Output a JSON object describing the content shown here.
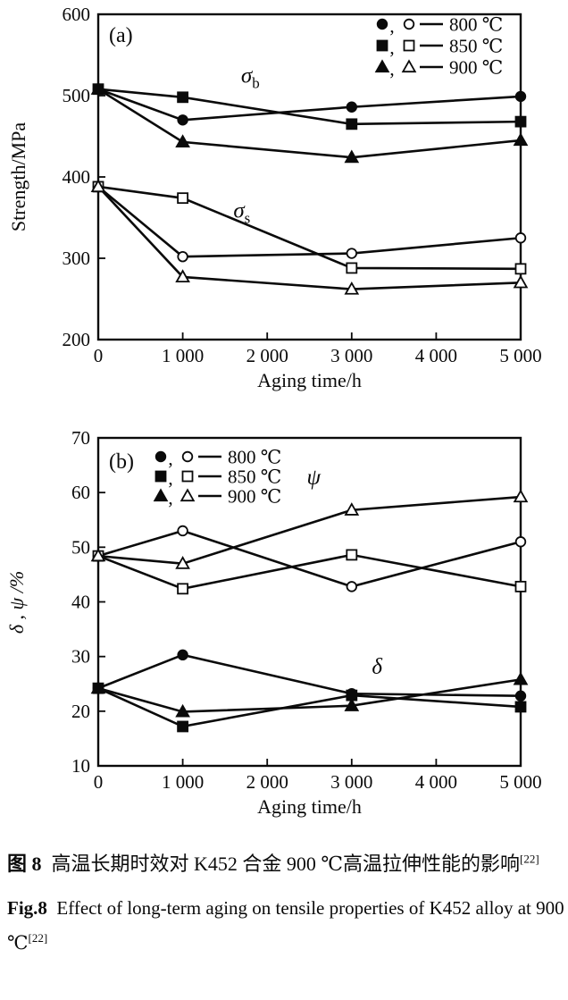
{
  "page": {
    "background": "#ffffff",
    "ink": "#0a0a0a"
  },
  "caption": {
    "cn_fig_label": "图 8",
    "cn_text": "高温长期时效对 K452 合金 900 ℃高温拉伸性能的影响",
    "cn_sup": "[22]",
    "en_fig_label": "Fig.8",
    "en_text": "Effect of long-term aging on tensile properties of K452 alloy at 900 ℃",
    "en_sup": "[22]"
  },
  "chart_data": [
    {
      "type": "line",
      "panel_label": "(a)",
      "xlabel": "Aging time/h",
      "ylabel": "Strength/MPa",
      "ylabel_italic": false,
      "xlim": [
        0,
        5000
      ],
      "ylim": [
        200,
        600
      ],
      "x": [
        0,
        1000,
        3000,
        5000
      ],
      "xticks": [
        0,
        1000,
        2000,
        3000,
        4000,
        5000
      ],
      "xtick_labels": [
        "0",
        "1 000",
        "2 000",
        "3 000",
        "4 000",
        "5 000"
      ],
      "yticks": [
        200,
        300,
        400,
        500,
        600
      ],
      "ytick_labels": [
        "200",
        "300",
        "400",
        "500",
        "600"
      ],
      "grid": false,
      "series": [
        {
          "name": "sigma-b 800C",
          "marker": "circle",
          "filled": true,
          "values": [
            508,
            470,
            486,
            499
          ]
        },
        {
          "name": "sigma-b 850C",
          "marker": "square",
          "filled": true,
          "values": [
            508,
            498,
            465,
            468
          ]
        },
        {
          "name": "sigma-b 900C",
          "marker": "triangle",
          "filled": true,
          "values": [
            508,
            443,
            424,
            445
          ]
        },
        {
          "name": "sigma-s 800C",
          "marker": "circle",
          "filled": false,
          "values": [
            388,
            302,
            306,
            325
          ]
        },
        {
          "name": "sigma-s 850C",
          "marker": "square",
          "filled": false,
          "values": [
            388,
            374,
            288,
            287
          ]
        },
        {
          "name": "sigma-s 900C",
          "marker": "triangle",
          "filled": false,
          "values": [
            388,
            277,
            262,
            270
          ]
        }
      ],
      "annotations": [
        {
          "main": "σ",
          "sub": "b",
          "x": 1800,
          "y": 516
        },
        {
          "main": "σ",
          "sub": "s",
          "x": 1700,
          "y": 350
        }
      ],
      "legend": {
        "position": "top-right",
        "comma": ",",
        "entries": [
          {
            "marker": "circle",
            "label": "800 ℃"
          },
          {
            "marker": "square",
            "label": "850 ℃"
          },
          {
            "marker": "triangle",
            "label": "900 ℃"
          }
        ]
      }
    },
    {
      "type": "line",
      "panel_label": "(b)",
      "xlabel": "Aging time/h",
      "ylabel": "δ , ψ /%",
      "ylabel_italic": true,
      "xlim": [
        0,
        5000
      ],
      "ylim": [
        10,
        70
      ],
      "x": [
        0,
        1000,
        3000,
        5000
      ],
      "xticks": [
        0,
        1000,
        2000,
        3000,
        4000,
        5000
      ],
      "xtick_labels": [
        "0",
        "1 000",
        "2 000",
        "3 000",
        "4 000",
        "5 000"
      ],
      "yticks": [
        10,
        20,
        30,
        40,
        50,
        60,
        70
      ],
      "ytick_labels": [
        "10",
        "20",
        "30",
        "40",
        "50",
        "60",
        "70"
      ],
      "grid": false,
      "series": [
        {
          "name": "psi 800C",
          "marker": "circle",
          "filled": false,
          "values": [
            48.4,
            53.0,
            42.8,
            51.0
          ]
        },
        {
          "name": "psi 850C",
          "marker": "square",
          "filled": false,
          "values": [
            48.4,
            42.4,
            48.6,
            42.8
          ]
        },
        {
          "name": "psi 900C",
          "marker": "triangle",
          "filled": false,
          "values": [
            48.4,
            47.0,
            56.8,
            59.2
          ]
        },
        {
          "name": "delta 800C",
          "marker": "circle",
          "filled": true,
          "values": [
            24.2,
            30.3,
            23.2,
            22.8
          ]
        },
        {
          "name": "delta 850C",
          "marker": "square",
          "filled": true,
          "values": [
            24.2,
            17.2,
            22.9,
            20.8
          ]
        },
        {
          "name": "delta 900C",
          "marker": "triangle",
          "filled": true,
          "values": [
            24.2,
            19.9,
            21.0,
            25.8
          ]
        }
      ],
      "annotations": [
        {
          "main": "ψ",
          "sub": "",
          "x": 2550,
          "y": 61.5
        },
        {
          "main": "δ",
          "sub": "",
          "x": 3300,
          "y": 26.8
        }
      ],
      "legend": {
        "position": "top-left",
        "comma": ",",
        "entries": [
          {
            "marker": "circle",
            "label": "800 ℃"
          },
          {
            "marker": "square",
            "label": "850 ℃"
          },
          {
            "marker": "triangle",
            "label": "900 ℃"
          }
        ]
      }
    }
  ]
}
